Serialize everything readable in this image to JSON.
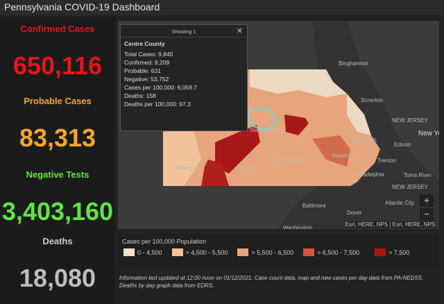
{
  "header": {
    "title": "Pennsylvania COVID-19 Dashboard"
  },
  "stats": [
    {
      "label": "Confirmed Cases",
      "value": "650,116"
    },
    {
      "label": "Probable Cases",
      "value": "83,313"
    },
    {
      "label": "Negative Tests",
      "value": "3,403,160"
    },
    {
      "label": "Deaths",
      "value": "18,080"
    }
  ],
  "popup": {
    "heading": "Showing 1",
    "county": "Centre County",
    "lines": [
      "Total Cases: 9,840",
      "Confirmed: 9,209",
      "Probable: 631",
      "Negative: 53,752",
      "Cases per 100,000: 6,059.7",
      "Deaths: 158",
      "Deaths per 100,000: 97.3"
    ]
  },
  "map": {
    "labels": [
      "Binghamton",
      "Scranton",
      "NEW JERSEY",
      "New York",
      "Allentown",
      "Edison",
      "Trenton",
      "Toms River",
      "Philadelphia",
      "NEW JERSEY",
      "Atlantic City",
      "Baltimore",
      "Dover",
      "Washington",
      "Pittsburgh",
      "Altoona",
      "State College",
      "Harrisburg",
      "Reading"
    ],
    "attribution": "Esri, HERE, NPS | Esri, HERE, NPS"
  },
  "legend": {
    "title": "Cases per 100,000 Population",
    "items": [
      "0 - 4,500",
      "> 4,500 - 5,500",
      "> 5,500 - 6,500",
      "> 6,500 - 7,500",
      "> 7,500"
    ]
  },
  "footnote": "Information last updated at 12:00 noon on 01/12/2021. Case count data, map and new cases per day data from PA-NEDSS.  Deaths by day graph data from EDRS."
}
